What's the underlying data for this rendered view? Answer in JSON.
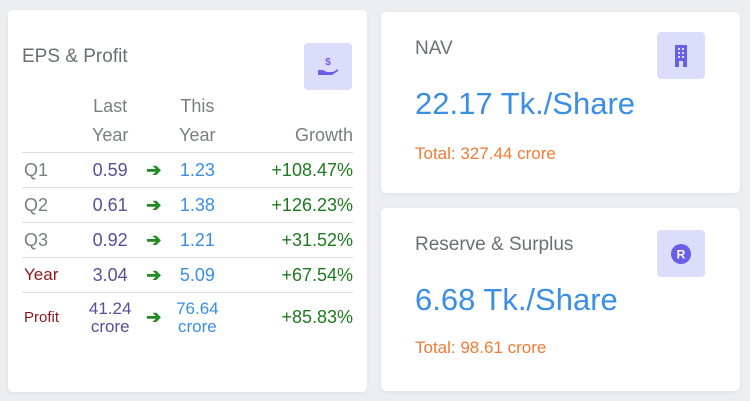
{
  "eps": {
    "title": "EPS & Profit",
    "icon": "hand-dollar-icon",
    "headers": {
      "last_1": "Last",
      "last_2": "Year",
      "this_1": "This",
      "this_2": "Year",
      "growth": "Growth"
    },
    "rows": [
      {
        "label": "Q1",
        "last": "0.59",
        "this": "1.23",
        "growth": "+108.47%"
      },
      {
        "label": "Q2",
        "last": "0.61",
        "this": "1.38",
        "growth": "+126.23%"
      },
      {
        "label": "Q3",
        "last": "0.92",
        "this": "1.21",
        "growth": "+31.52%"
      },
      {
        "label": "Year",
        "last": "3.04",
        "this": "5.09",
        "growth": "+67.54%"
      }
    ],
    "profit": {
      "label": "Profit",
      "last": "41.24",
      "this": "76.64",
      "unit": "crore",
      "growth": "+85.83%"
    },
    "arrow": "➔"
  },
  "nav": {
    "title": "NAV",
    "value": "22.17 Tk./Share",
    "total": "Total: 327.44 crore",
    "icon": "building-icon"
  },
  "reserve": {
    "title": "Reserve & Surplus",
    "value": "6.68 Tk./Share",
    "total": "Total: 98.61 crore",
    "icon": "registered-icon"
  },
  "colors": {
    "accent": "#3a8ee6",
    "total": "#f07a36",
    "growth": "#1e7a1e",
    "icon_bg": "#dcdcfb",
    "icon_fg": "#6a5ee8"
  }
}
